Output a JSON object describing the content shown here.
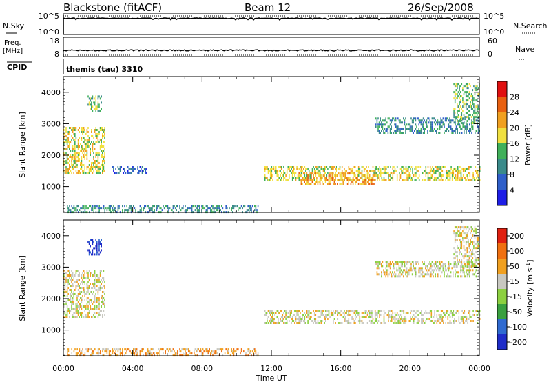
{
  "header": {
    "station": "Blackstone (fitACF)",
    "beam": "Beam 12",
    "date": "26/Sep/2008"
  },
  "top_panels": {
    "nsky_label": "N.Sky",
    "nsky_ticks": [
      "10^5",
      "10^0"
    ],
    "nsearch_label": "N.Search",
    "nsearch_ticks": [
      "10^5",
      "10^0"
    ],
    "freq_label_line1": "Freq.",
    "freq_label_line2": "[MHz]",
    "freq_ticks": [
      "18",
      "8"
    ],
    "nave_label": "Nave",
    "nave_ticks": [
      "60",
      "0"
    ],
    "cpid_label": "CPID",
    "cpid_text": "themis (tau) 3310"
  },
  "chart_data": [
    {
      "type": "heatmap",
      "title": "",
      "ylabel": "Slant Range [km]",
      "xlabel": "",
      "x_ticks": [
        "00:00",
        "04:00",
        "08:00",
        "12:00",
        "16:00",
        "20:00",
        "00:00"
      ],
      "x_range_hours": [
        0,
        24
      ],
      "y_ticks": [
        1000,
        2000,
        3000,
        4000
      ],
      "y_range_km": [
        180,
        4500
      ],
      "colorbar": {
        "label": "Power [dB]",
        "ticks": [
          "4",
          "8",
          "12",
          "16",
          "20",
          "24",
          "28"
        ],
        "colors": [
          "#1e1ee6",
          "#2f5fc9",
          "#3a8a8a",
          "#40b05a",
          "#f0e040",
          "#f0a020",
          "#e86010",
          "#e01010"
        ]
      },
      "echo_regions": [
        {
          "t0": 0.0,
          "t1": 2.4,
          "r0": 1400,
          "r1": 2900,
          "level": 4
        },
        {
          "t0": 1.4,
          "t1": 2.2,
          "r0": 3400,
          "r1": 3900,
          "level": 3
        },
        {
          "t0": 2.8,
          "t1": 4.8,
          "r0": 1450,
          "r1": 1650,
          "level": 1
        },
        {
          "t0": 0.2,
          "t1": 11.2,
          "r0": 200,
          "r1": 420,
          "level": 2
        },
        {
          "t0": 11.6,
          "t1": 24.0,
          "r0": 1200,
          "r1": 1650,
          "level": 4
        },
        {
          "t0": 13.5,
          "t1": 18.0,
          "r0": 1100,
          "r1": 1450,
          "level": 5
        },
        {
          "t0": 18.0,
          "t1": 24.0,
          "r0": 2700,
          "r1": 3200,
          "level": 2
        },
        {
          "t0": 22.5,
          "t1": 24.0,
          "r0": 3000,
          "r1": 4300,
          "level": 3
        }
      ]
    },
    {
      "type": "heatmap",
      "title": "",
      "ylabel": "Slant Range [km]",
      "xlabel": "Time UT",
      "x_ticks": [
        "00:00",
        "04:00",
        "08:00",
        "12:00",
        "16:00",
        "20:00",
        "00:00"
      ],
      "x_range_hours": [
        0,
        24
      ],
      "y_ticks": [
        1000,
        2000,
        3000,
        4000
      ],
      "y_range_km": [
        180,
        4500
      ],
      "colorbar": {
        "label": "Velocity [m s^-1]",
        "ticks": [
          "200",
          "100",
          "50",
          "15",
          "-15",
          "-50",
          "-100",
          "-200"
        ],
        "colors": [
          "#1e2cc8",
          "#2f6ad0",
          "#3aa040",
          "#8cd040",
          "#c8c8c0",
          "#f0a020",
          "#f07010",
          "#e02010"
        ]
      },
      "echo_regions": [
        {
          "t0": 0.0,
          "t1": 2.4,
          "r0": 1400,
          "r1": 2900,
          "level": 4
        },
        {
          "t0": 1.4,
          "t1": 2.2,
          "r0": 3400,
          "r1": 3900,
          "level": 0
        },
        {
          "t0": 0.2,
          "t1": 11.2,
          "r0": 200,
          "r1": 420,
          "level": 5
        },
        {
          "t0": 11.6,
          "t1": 24.0,
          "r0": 1200,
          "r1": 1650,
          "level": 4
        },
        {
          "t0": 18.0,
          "t1": 24.0,
          "r0": 2700,
          "r1": 3200,
          "level": 4
        },
        {
          "t0": 22.5,
          "t1": 24.0,
          "r0": 3000,
          "r1": 4300,
          "level": 4
        }
      ]
    }
  ]
}
